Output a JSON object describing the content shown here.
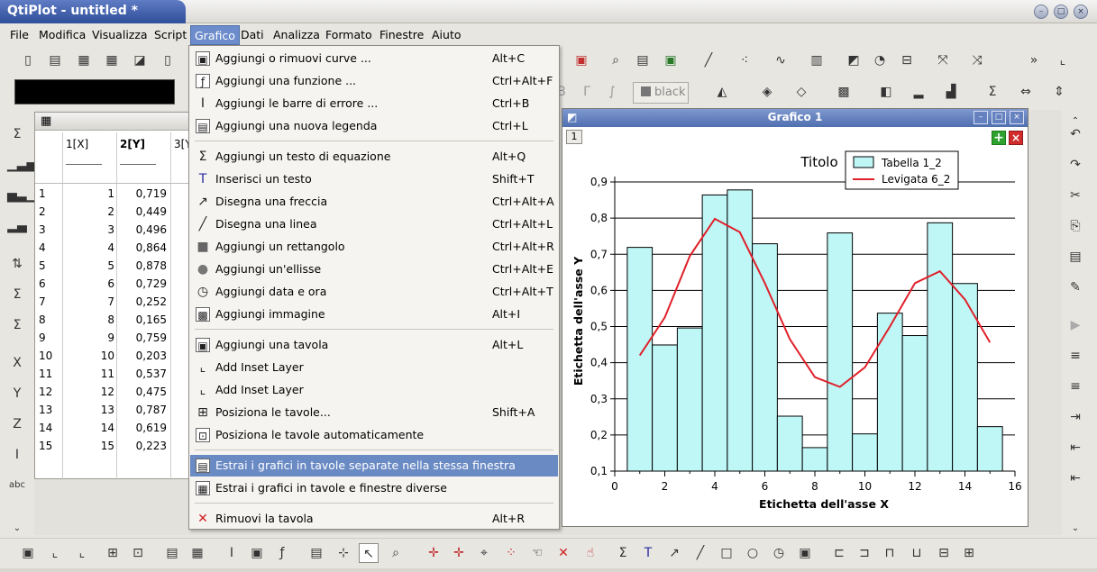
{
  "window": {
    "title": "QtiPlot - untitled *"
  },
  "menubar": [
    "File",
    "Modifica",
    "Visualizza",
    "Script",
    "Grafico",
    "Dati",
    "Analizza",
    "Formato",
    "Finestre",
    "Aiuto"
  ],
  "format_bar": {
    "color_label": "black"
  },
  "table": {
    "headers": [
      "1[X]",
      "2[Y]",
      "3[Y"
    ],
    "rows": [
      [
        "1",
        "1",
        "0,719"
      ],
      [
        "2",
        "2",
        "0,449"
      ],
      [
        "3",
        "3",
        "0,496"
      ],
      [
        "4",
        "4",
        "0,864"
      ],
      [
        "5",
        "5",
        "0,878"
      ],
      [
        "6",
        "6",
        "0,729"
      ],
      [
        "7",
        "7",
        "0,252"
      ],
      [
        "8",
        "8",
        "0,165"
      ],
      [
        "9",
        "9",
        "0,759"
      ],
      [
        "10",
        "10",
        "0,203"
      ],
      [
        "11",
        "11",
        "0,537"
      ],
      [
        "12",
        "12",
        "0,475"
      ],
      [
        "13",
        "13",
        "0,787"
      ],
      [
        "14",
        "14",
        "0,619"
      ],
      [
        "15",
        "15",
        "0,223"
      ]
    ]
  },
  "menu": {
    "items": [
      {
        "label": "Aggiungi o rimuovi curve ...",
        "shortcut": "Alt+C",
        "icon": "curves-icon"
      },
      {
        "label": "Aggiungi una funzione ...",
        "shortcut": "Ctrl+Alt+F",
        "icon": "function-icon"
      },
      {
        "label": "Aggiungi le barre di errore ...",
        "shortcut": "Ctrl+B",
        "icon": "error-bars-icon"
      },
      {
        "label": "Aggiungi una nuova legenda",
        "shortcut": "Ctrl+L",
        "icon": "legend-icon"
      },
      {
        "label": "Aggiungi un testo di equazione",
        "shortcut": "Alt+Q",
        "icon": "sigma-icon"
      },
      {
        "label": "Inserisci un testo",
        "shortcut": "Shift+T",
        "icon": "text-icon"
      },
      {
        "label": "Disegna una freccia",
        "shortcut": "Ctrl+Alt+A",
        "icon": "arrow-icon"
      },
      {
        "label": "Disegna una linea",
        "shortcut": "Ctrl+Alt+L",
        "icon": "line-icon"
      },
      {
        "label": "Aggiungi un rettangolo",
        "shortcut": "Ctrl+Alt+R",
        "icon": "rectangle-icon"
      },
      {
        "label": "Aggiungi un'ellisse",
        "shortcut": "Ctrl+Alt+E",
        "icon": "ellipse-icon"
      },
      {
        "label": "Aggiungi data e ora",
        "shortcut": "Ctrl+Alt+T",
        "icon": "clock-icon"
      },
      {
        "label": "Aggiungi immagine",
        "shortcut": "Alt+I",
        "icon": "image-icon"
      },
      {
        "label": "Aggiungi una tavola",
        "shortcut": "Alt+L",
        "icon": "add-layer-icon"
      },
      {
        "label": "Add Inset Layer",
        "shortcut": "",
        "icon": "inset-layer-icon"
      },
      {
        "label": "Add Inset Layer",
        "shortcut": "",
        "icon": "inset-layer-icon"
      },
      {
        "label": "Posiziona le tavole...",
        "shortcut": "Shift+A",
        "icon": "arrange-layers-icon"
      },
      {
        "label": "Posiziona le tavole automaticamente",
        "shortcut": "",
        "icon": "auto-arrange-icon"
      },
      {
        "label": "Estrai i grafici in tavole separate nella stessa finestra",
        "shortcut": "",
        "icon": "extract-same-window-icon"
      },
      {
        "label": "Estrai i grafici in tavole e finestre diverse",
        "shortcut": "",
        "icon": "extract-new-windows-icon"
      },
      {
        "label": "Rimuovi la tavola",
        "shortcut": "Alt+R",
        "icon": "remove-layer-icon"
      }
    ]
  },
  "graph": {
    "window_title": "Grafico 1",
    "layer_number": "1",
    "plus_label": "+",
    "close_label": "×"
  },
  "chart_data": {
    "type": "bar",
    "title": "Titolo",
    "xlabel": "Etichetta dell'asse X",
    "ylabel": "Etichetta dell'asse Y",
    "xlim": [
      0,
      16
    ],
    "ylim": [
      0.1,
      0.9
    ],
    "xticks": [
      "0",
      "2",
      "4",
      "6",
      "8",
      "10",
      "12",
      "14",
      "16"
    ],
    "yticks": [
      "0,1",
      "0,2",
      "0,3",
      "0,4",
      "0,5",
      "0,6",
      "0,7",
      "0,8",
      "0,9"
    ],
    "grid": "horizontal",
    "legend": "top-right",
    "bar_color": "#bff7f7",
    "line_color": "#e0202a",
    "series": [
      {
        "name": "Tabella 1_2",
        "type": "bar",
        "x": [
          1,
          2,
          3,
          4,
          5,
          6,
          7,
          8,
          9,
          10,
          11,
          12,
          13,
          14,
          15
        ],
        "values": [
          0.719,
          0.449,
          0.496,
          0.864,
          0.878,
          0.729,
          0.252,
          0.165,
          0.759,
          0.203,
          0.537,
          0.475,
          0.787,
          0.619,
          0.223
        ]
      },
      {
        "name": "Levigata 6_2",
        "type": "line",
        "x": [
          1,
          2,
          3,
          4,
          5,
          6,
          7,
          8,
          9,
          10,
          11,
          12,
          13,
          14,
          15
        ],
        "values": [
          0.42,
          0.525,
          0.695,
          0.798,
          0.761,
          0.62,
          0.465,
          0.36,
          0.333,
          0.387,
          0.5,
          0.62,
          0.653,
          0.575,
          0.456
        ]
      }
    ]
  }
}
